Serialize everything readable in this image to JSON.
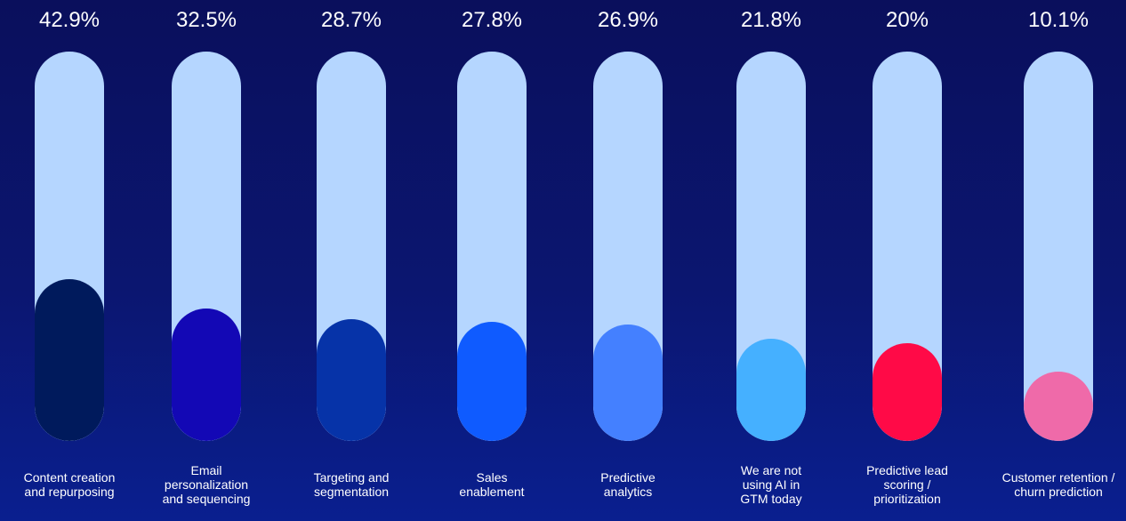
{
  "chart_data": {
    "type": "bar",
    "title": "",
    "xlabel": "",
    "ylabel": "",
    "ylim": [
      0,
      100
    ],
    "value_suffix": "%",
    "categories": [
      "Content creation and repurposing",
      "Email personalization and sequencing",
      "Targeting and segmentation",
      "Sales enablement",
      "Predictive analytics",
      "We are not using AI in GTM today",
      "Predictive lead scoring / prioritization",
      "Customer retention / churn prediction"
    ],
    "value_labels": [
      "42.9%",
      "32.5%",
      "28.7%",
      "27.8%",
      "26.9%",
      "21.8%",
      "20%",
      "10.1%"
    ],
    "values": [
      42.9,
      32.5,
      28.7,
      27.8,
      26.9,
      21.8,
      20,
      10.1
    ],
    "colors": [
      "#001a5c",
      "#1308b5",
      "#0633a8",
      "#0f5bff",
      "#4480ff",
      "#45b0ff",
      "#ff0a47",
      "#ef6aa9"
    ],
    "track_color": "#b5d6ff"
  }
}
